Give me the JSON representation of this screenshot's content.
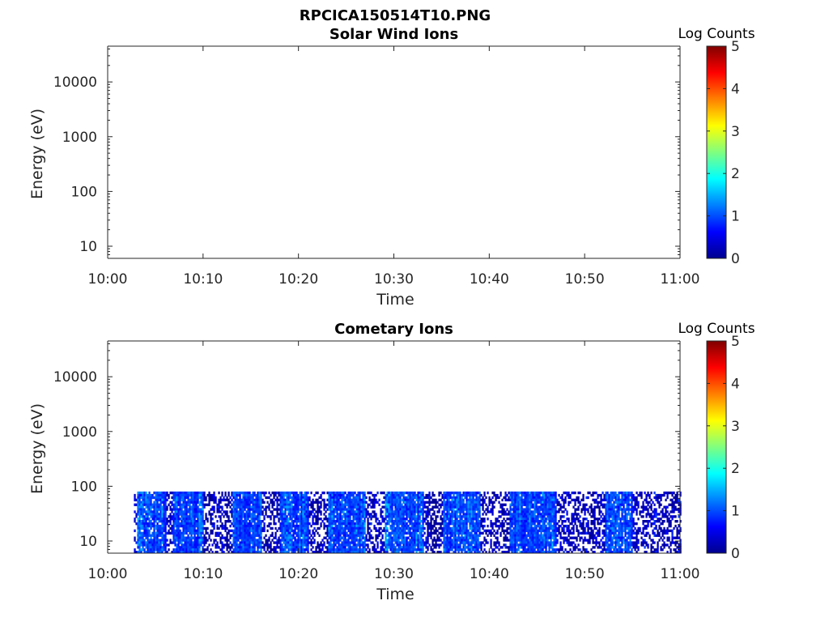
{
  "figure_title": "RPCICA150514T10.PNG",
  "chart_data": [
    {
      "type": "heatmap",
      "title": "Solar Wind Ions",
      "xlabel": "Time",
      "ylabel": "Energy (eV)",
      "y_scale": "log",
      "ylim": [
        6,
        45000
      ],
      "xlim": [
        "10:00",
        "11:00"
      ],
      "x_ticks": [
        "10:00",
        "10:10",
        "10:20",
        "10:30",
        "10:40",
        "10:50",
        "11:00"
      ],
      "y_ticks": [
        "10",
        "100",
        "1000",
        "10000"
      ],
      "colorbar": {
        "label": "Log Counts",
        "range": [
          0,
          5
        ],
        "ticks": [
          "0",
          "1",
          "2",
          "3",
          "4",
          "5"
        ],
        "colormap": "jet"
      },
      "counts": "none"
    },
    {
      "type": "heatmap",
      "title": "Cometary Ions",
      "xlabel": "Time",
      "ylabel": "Energy (eV)",
      "y_scale": "log",
      "ylim": [
        6,
        45000
      ],
      "xlim": [
        "10:00",
        "11:00"
      ],
      "x_ticks": [
        "10:00",
        "10:10",
        "10:20",
        "10:30",
        "10:40",
        "10:50",
        "11:00"
      ],
      "y_ticks": [
        "10",
        "100",
        "1000",
        "10000"
      ],
      "colorbar": {
        "label": "Log Counts",
        "range": [
          0,
          5
        ],
        "ticks": [
          "0",
          "1",
          "2",
          "3",
          "4",
          "5"
        ],
        "colormap": "jet"
      },
      "counts": {
        "time_start": "10:02:45",
        "time_end": "11:00",
        "energy_min": 6,
        "energy_max": 80,
        "log_counts_range": [
          0,
          1.6
        ],
        "bright_time_intervals": [
          [
            "10:03",
            "10:06"
          ],
          [
            "10:06:45",
            "10:10"
          ],
          [
            "10:13",
            "10:16"
          ],
          [
            "10:18",
            "10:21"
          ],
          [
            "10:23",
            "10:27"
          ],
          [
            "10:29",
            "10:33"
          ],
          [
            "10:35",
            "10:39"
          ],
          [
            "10:42",
            "10:47"
          ],
          [
            "10:52",
            "10:55"
          ]
        ]
      }
    }
  ]
}
